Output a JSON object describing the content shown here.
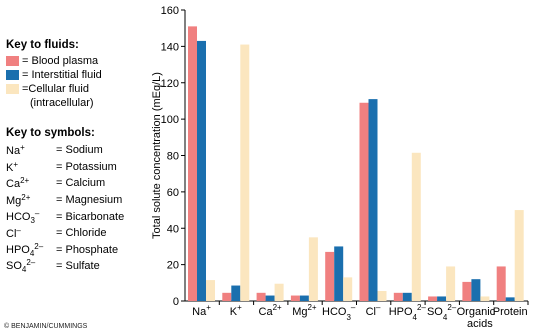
{
  "legend": {
    "fluids_title": "Key to fluids:",
    "fluids": [
      {
        "label": "= Blood plasma",
        "color": "#f08080"
      },
      {
        "label": "= Interstitial fluid",
        "color": "#1a6fae"
      },
      {
        "label": "=Cellular fluid",
        "label2": "(intracellular)",
        "color": "#fbe6bf"
      }
    ],
    "symbols_title": "Key to symbols:",
    "symbols": [
      {
        "sym": "Na",
        "sup": "+",
        "sub": "",
        "name": "= Sodium"
      },
      {
        "sym": "K",
        "sup": "+",
        "sub": "",
        "name": "= Potassium"
      },
      {
        "sym": "Ca",
        "sup": "2+",
        "sub": "",
        "name": "= Calcium"
      },
      {
        "sym": "Mg",
        "sup": "2+",
        "sub": "",
        "name": "= Magnesium"
      },
      {
        "sym": "HCO",
        "sup": "–",
        "sub": "3",
        "name": "= Bicarbonate"
      },
      {
        "sym": "Cl",
        "sup": "–",
        "sub": "",
        "name": "= Chloride"
      },
      {
        "sym": "HPO",
        "sup": "2–",
        "sub": "4",
        "name": "= Phosphate"
      },
      {
        "sym": "SO",
        "sup": "2–",
        "sub": "4",
        "name": "= Sulfate"
      }
    ]
  },
  "credit": "© BENJAMIN/CUMMINGS",
  "chart_data": {
    "type": "bar",
    "ylabel": "Total solute concentration (mEq/L)",
    "xlabel": "",
    "ylim": [
      0,
      160
    ],
    "yticks": [
      0,
      20,
      40,
      60,
      80,
      100,
      120,
      140,
      160
    ],
    "grid": false,
    "categories": [
      {
        "base": "Na",
        "sup": "+",
        "sub": ""
      },
      {
        "base": "K",
        "sup": "+",
        "sub": ""
      },
      {
        "base": "Ca",
        "sup": "2+",
        "sub": ""
      },
      {
        "base": "Mg",
        "sup": "2+",
        "sub": ""
      },
      {
        "base": "HCO",
        "sup": "–",
        "sub": "3"
      },
      {
        "base": "Cl",
        "sup": "–",
        "sub": ""
      },
      {
        "base": "HPO",
        "sup": "2–",
        "sub": "4"
      },
      {
        "base": "SO",
        "sup": "2–",
        "sub": "4"
      },
      {
        "base": "Organic",
        "base2": "acids",
        "sup": "",
        "sub": ""
      },
      {
        "base": "Protein",
        "sup": "",
        "sub": ""
      }
    ],
    "series": [
      {
        "name": "Blood plasma",
        "color": "#f08080",
        "values": [
          151,
          4.5,
          4.5,
          3,
          27,
          109,
          4.5,
          2.5,
          10.5,
          19
        ]
      },
      {
        "name": "Interstitial fluid",
        "color": "#1a6fae",
        "values": [
          143,
          8.5,
          3,
          3,
          30,
          111,
          4.5,
          2.5,
          12,
          2
        ]
      },
      {
        "name": "Cellular fluid (intracellular)",
        "color": "#fbe6bf",
        "values": [
          11.5,
          141,
          9.5,
          35,
          13,
          5.5,
          81.5,
          19,
          2.5,
          50
        ]
      }
    ]
  }
}
